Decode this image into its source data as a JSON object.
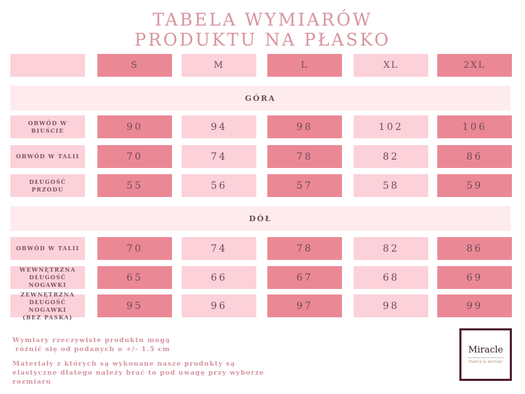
{
  "title": {
    "line1": "TABELA WYMIARÓW",
    "line2": "PRODUKTU NA PŁASKO"
  },
  "colors": {
    "title": "#d9949f",
    "cell_light": "#fcd1d9",
    "cell_dark": "#eb8895",
    "section_band": "#feebee",
    "text": "#6e4a56",
    "logo_border": "#4d1a2c"
  },
  "sizes": [
    "S",
    "M",
    "L",
    "XL",
    "2XL"
  ],
  "sections": [
    {
      "label": "GÓRA",
      "rows": [
        {
          "label": "OBWÓD W BIUŚCIE",
          "values": [
            "90",
            "94",
            "98",
            "102",
            "106"
          ]
        },
        {
          "label": "OBWÓD W TALII",
          "values": [
            "70",
            "74",
            "78",
            "82",
            "86"
          ]
        },
        {
          "label": "DŁUGOŚĆ\nPRZODU",
          "values": [
            "55",
            "56",
            "57",
            "58",
            "59"
          ]
        }
      ]
    },
    {
      "label": "DÓŁ",
      "rows": [
        {
          "label": "OBWÓD W TALII",
          "values": [
            "70",
            "74",
            "78",
            "82",
            "86"
          ]
        },
        {
          "label": "WEWNĘTRZNA\nDŁUGOŚĆ NOGAWKI",
          "values": [
            "65",
            "66",
            "67",
            "68",
            "69"
          ]
        },
        {
          "label": "ZEWNĘTRZNA\nDŁUGOŚĆ NOGAWKI\n(BEZ PASKA)",
          "values": [
            "95",
            "96",
            "97",
            "98",
            "99"
          ]
        }
      ]
    }
  ],
  "notes": {
    "tolerance": "Wymiary rzeczywiste produktu mogą\n różnić się od podanych o +/- 1.5 cm",
    "elasticity": "Materiały z których są wykonane nasze produkty są\nelastyczne dlatego należy brać to pod uwagę przy wyborze\nrozmiaru"
  },
  "logo": {
    "name": "Miracle",
    "tagline": "mama & woman"
  }
}
